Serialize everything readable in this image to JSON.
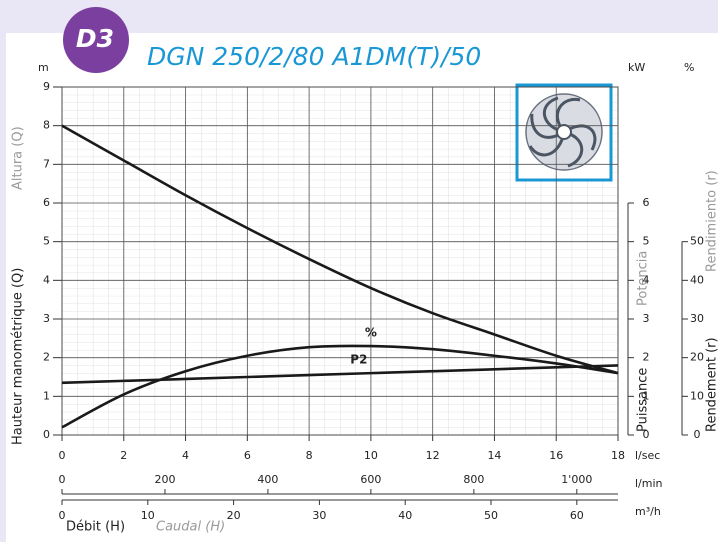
{
  "badge": "D3",
  "chart_data": {
    "type": "line",
    "title": "DGN 250/2/80 A1DM(T)/50",
    "x": [
      0,
      2,
      4,
      6,
      8,
      10,
      12,
      14,
      16,
      18
    ],
    "series": [
      {
        "color": "#1a1a1a",
        "axis": "y",
        "values": [
          8.0,
          7.1,
          6.2,
          5.35,
          4.55,
          3.8,
          3.15,
          2.6,
          2.05,
          1.6
        ]
      },
      {
        "name": "%",
        "color": "#1a1a1a",
        "axis": "y3",
        "values": [
          2,
          10.5,
          16.5,
          20.5,
          22.7,
          23,
          22.2,
          20.5,
          18.5,
          16
        ]
      },
      {
        "name": "P2",
        "color": "#1a1a1a",
        "axis": "y2",
        "values": [
          1.35,
          1.4,
          1.45,
          1.5,
          1.55,
          1.6,
          1.65,
          1.7,
          1.75,
          1.8
        ]
      }
    ],
    "xlim": [
      0,
      18
    ],
    "xticks": [
      0,
      2,
      4,
      6,
      8,
      10,
      12,
      14,
      16,
      18
    ],
    "x_unit": "l/sec",
    "x2lim": [
      0,
      1080
    ],
    "x2ticks": [
      0,
      200,
      400,
      600,
      800,
      {
        "value": 1000,
        "label": "1'000"
      }
    ],
    "x2_unit": "l/min",
    "x3lim": [
      0,
      64.8
    ],
    "x3ticks": [
      0,
      10,
      20,
      30,
      40,
      50,
      60
    ],
    "x3_unit": "m³/h",
    "ylim": [
      0,
      9
    ],
    "yticks": [
      0,
      1,
      2,
      3,
      4,
      5,
      6,
      7,
      8,
      9
    ],
    "y_unit": "m",
    "y2lim": [
      0,
      9
    ],
    "y2ticks": [
      0,
      1,
      2,
      3,
      4,
      5,
      6
    ],
    "y2_unit": "kW",
    "y3lim": [
      0,
      90
    ],
    "y3ticks": [
      0,
      10,
      20,
      30,
      40,
      50
    ],
    "y3_unit": "%",
    "y_label": "Hauteur manométrique (Q)",
    "y_label_es": "Altura (Q)",
    "y2_label": "Puissance",
    "y2_label_es": "Potencia",
    "y3_label": "Rendement (r)",
    "y3_label_es": "Rendimiento (r)",
    "x_label": "Débit (H)",
    "x_label_es": "Caudal (H)",
    "grid": true
  }
}
